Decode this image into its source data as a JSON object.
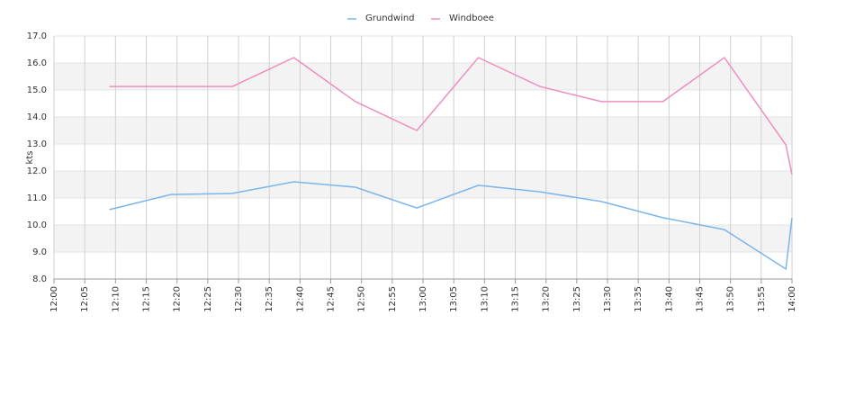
{
  "chart_data": {
    "type": "line",
    "y_label": "kts",
    "x": [
      "12:09",
      "12:19",
      "12:29",
      "12:39",
      "12:49",
      "12:59",
      "13:09",
      "13:19",
      "13:29",
      "13:39",
      "13:49",
      "13:59",
      "14:00"
    ],
    "xlim": [
      "12:00",
      "14:00"
    ],
    "xticks": [
      "12:00",
      "12:05",
      "12:10",
      "12:15",
      "12:20",
      "12:25",
      "12:30",
      "12:35",
      "12:40",
      "12:45",
      "12:50",
      "12:55",
      "13:00",
      "13:05",
      "13:10",
      "13:15",
      "13:20",
      "13:25",
      "13:30",
      "13:35",
      "13:40",
      "13:45",
      "13:50",
      "13:55",
      "14:00"
    ],
    "ylim": [
      8,
      17
    ],
    "yticks": [
      {
        "value": 8,
        "label": "8.0"
      },
      {
        "value": 9,
        "label": "9.0"
      },
      {
        "value": 10,
        "label": "10.0"
      },
      {
        "value": 11,
        "label": "11.0"
      },
      {
        "value": 12,
        "label": "12.0"
      },
      {
        "value": 13,
        "label": "13.0"
      },
      {
        "value": 14,
        "label": "14.0"
      },
      {
        "value": 15,
        "label": "15.0"
      },
      {
        "value": 16,
        "label": "16.0"
      },
      {
        "value": 17,
        "label": "17.0"
      }
    ],
    "grid": true,
    "legend": "top",
    "series": [
      {
        "name": "Grundwind",
        "color": "#7cb5ec",
        "values": [
          10.57,
          11.13,
          11.17,
          11.6,
          11.4,
          10.63,
          11.47,
          11.23,
          10.87,
          10.27,
          9.83,
          8.37,
          10.27
        ]
      },
      {
        "name": "Windboee",
        "color": "#f08dbf",
        "values": [
          15.13,
          15.13,
          15.13,
          16.2,
          14.57,
          13.5,
          16.2,
          15.13,
          14.57,
          14.57,
          16.2,
          12.97,
          11.87
        ]
      }
    ]
  }
}
